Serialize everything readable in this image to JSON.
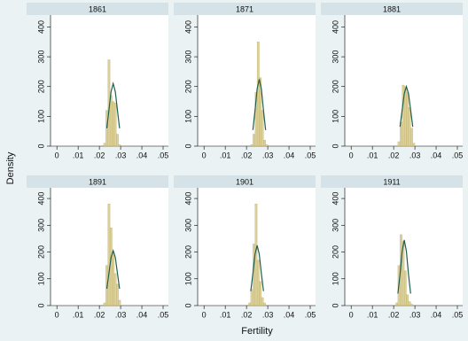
{
  "axis_labels": {
    "x": "Fertility",
    "y": "Density"
  },
  "chart_data": [
    {
      "type": "histogram",
      "title": "1861",
      "bins": [
        0.022,
        0.023,
        0.024,
        0.025,
        0.026,
        0.027,
        0.028,
        0.029,
        0.03
      ],
      "values": [
        10,
        120,
        290,
        170,
        150,
        145,
        40,
        5
      ],
      "color": "#d6c98a",
      "curve": {
        "x": [
          0.0235,
          0.0245,
          0.0255,
          0.0265,
          0.0275,
          0.0285,
          0.0295
        ],
        "values": [
          60,
          121,
          183,
          210,
          183,
          121,
          60
        ],
        "color": "#1f5f4e"
      },
      "xlim": [
        -0.003,
        0.0525
      ],
      "xticks": [
        0,
        {
          "value": 0.01,
          "label": ".01"
        },
        {
          "value": 0.02,
          "label": ".02"
        },
        {
          "value": 0.03,
          "label": ".03"
        },
        {
          "value": 0.04,
          "label": ".04"
        },
        {
          "value": 0.05,
          "label": ".05"
        }
      ],
      "ylim": [
        0,
        440
      ],
      "yticks": [
        0,
        100,
        200,
        300,
        400
      ]
    },
    {
      "type": "histogram",
      "title": "1871",
      "bins": [
        0.022,
        0.023,
        0.024,
        0.025,
        0.026,
        0.027,
        0.028,
        0.029,
        0.03
      ],
      "values": [
        5,
        40,
        180,
        350,
        230,
        120,
        20,
        5
      ],
      "color": "#d6c98a",
      "curve": {
        "x": [
          0.023,
          0.024,
          0.025,
          0.026,
          0.027,
          0.028,
          0.029
        ],
        "values": [
          54,
          119,
          192,
          225,
          192,
          119,
          54
        ],
        "color": "#1f5f4e"
      },
      "xlim": [
        -0.003,
        0.0525
      ],
      "xticks": [
        0,
        {
          "value": 0.01,
          "label": ".01"
        },
        {
          "value": 0.02,
          "label": ".02"
        },
        {
          "value": 0.03,
          "label": ".03"
        },
        {
          "value": 0.04,
          "label": ".04"
        },
        {
          "value": 0.05,
          "label": ".05"
        }
      ],
      "ylim": [
        0,
        440
      ],
      "yticks": [
        0,
        100,
        200,
        300,
        400
      ]
    },
    {
      "type": "histogram",
      "title": "1881",
      "bins": [
        0.022,
        0.023,
        0.024,
        0.025,
        0.026,
        0.027,
        0.028,
        0.029,
        0.03
      ],
      "values": [
        15,
        80,
        205,
        200,
        180,
        130,
        60,
        10
      ],
      "color": "#d6c98a",
      "curve": {
        "x": [
          0.023,
          0.024,
          0.025,
          0.026,
          0.027,
          0.028,
          0.029
        ],
        "values": [
          65,
          121,
          176,
          200,
          176,
          121,
          65
        ],
        "color": "#1f5f4e"
      },
      "xlim": [
        -0.003,
        0.0525
      ],
      "xticks": [
        0,
        {
          "value": 0.01,
          "label": ".01"
        },
        {
          "value": 0.02,
          "label": ".02"
        },
        {
          "value": 0.03,
          "label": ".03"
        },
        {
          "value": 0.04,
          "label": ".04"
        },
        {
          "value": 0.05,
          "label": ".05"
        }
      ],
      "ylim": [
        0,
        440
      ],
      "yticks": [
        0,
        100,
        200,
        300,
        400
      ]
    },
    {
      "type": "histogram",
      "title": "1891",
      "bins": [
        0.022,
        0.023,
        0.024,
        0.025,
        0.026,
        0.027,
        0.028,
        0.029,
        0.03
      ],
      "values": [
        10,
        150,
        380,
        290,
        200,
        120,
        80,
        20
      ],
      "color": "#d6c98a",
      "curve": {
        "x": [
          0.0235,
          0.0245,
          0.0255,
          0.0265,
          0.0275,
          0.0285,
          0.0295
        ],
        "values": [
          63,
          121,
          180,
          205,
          180,
          121,
          63
        ],
        "color": "#1f5f4e"
      },
      "xlim": [
        -0.003,
        0.0525
      ],
      "xticks": [
        0,
        {
          "value": 0.01,
          "label": ".01"
        },
        {
          "value": 0.02,
          "label": ".02"
        },
        {
          "value": 0.03,
          "label": ".03"
        },
        {
          "value": 0.04,
          "label": ".04"
        },
        {
          "value": 0.05,
          "label": ".05"
        }
      ],
      "ylim": [
        0,
        440
      ],
      "yticks": [
        0,
        100,
        200,
        300,
        400
      ]
    },
    {
      "type": "histogram",
      "title": "1901",
      "bins": [
        0.021,
        0.022,
        0.023,
        0.024,
        0.025,
        0.026,
        0.027,
        0.028,
        0.029
      ],
      "values": [
        10,
        60,
        230,
        380,
        170,
        90,
        30,
        10
      ],
      "color": "#d6c98a",
      "curve": {
        "x": [
          0.022,
          0.023,
          0.024,
          0.025,
          0.026,
          0.027,
          0.028
        ],
        "values": [
          54,
          119,
          192,
          225,
          192,
          119,
          54
        ],
        "color": "#1f5f4e"
      },
      "xlim": [
        -0.003,
        0.0525
      ],
      "xticks": [
        0,
        {
          "value": 0.01,
          "label": ".01"
        },
        {
          "value": 0.02,
          "label": ".02"
        },
        {
          "value": 0.03,
          "label": ".03"
        },
        {
          "value": 0.04,
          "label": ".04"
        },
        {
          "value": 0.05,
          "label": ".05"
        }
      ],
      "ylim": [
        0,
        440
      ],
      "yticks": [
        0,
        100,
        200,
        300,
        400
      ]
    },
    {
      "type": "histogram",
      "title": "1911",
      "bins": [
        0.021,
        0.022,
        0.023,
        0.024,
        0.025,
        0.026,
        0.027,
        0.028,
        0.029
      ],
      "values": [
        10,
        150,
        265,
        240,
        130,
        40,
        15,
        5
      ],
      "color": "#d6c98a",
      "curve": {
        "x": [
          0.022,
          0.023,
          0.024,
          0.025,
          0.026,
          0.027,
          0.028
        ],
        "values": [
          45,
          115,
          203,
          245,
          203,
          115,
          45
        ],
        "color": "#1f5f4e"
      },
      "xlim": [
        -0.003,
        0.0525
      ],
      "xticks": [
        0,
        {
          "value": 0.01,
          "label": ".01"
        },
        {
          "value": 0.02,
          "label": ".02"
        },
        {
          "value": 0.03,
          "label": ".03"
        },
        {
          "value": 0.04,
          "label": ".04"
        },
        {
          "value": 0.05,
          "label": ".05"
        }
      ],
      "ylim": [
        0,
        440
      ],
      "yticks": [
        0,
        100,
        200,
        300,
        400
      ]
    }
  ]
}
